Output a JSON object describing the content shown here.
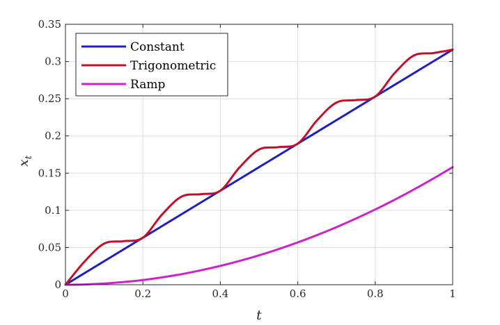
{
  "chart_data": {
    "type": "line",
    "title": "",
    "xlabel": "t",
    "ylabel": "x",
    "ylabel_subscript": "t",
    "xlim": [
      0,
      1
    ],
    "ylim": [
      0,
      0.35
    ],
    "xticks": [
      0,
      0.2,
      0.4,
      0.6,
      0.8,
      1
    ],
    "xtick_labels": [
      "0",
      "0.2",
      "0.4",
      "0.6",
      "0.8",
      "1"
    ],
    "yticks": [
      0,
      0.05,
      0.1,
      0.15,
      0.2,
      0.25,
      0.3,
      0.35
    ],
    "ytick_labels": [
      "0",
      "0.05",
      "0.1",
      "0.15",
      "0.2",
      "0.25",
      "0.3",
      "0.35"
    ],
    "grid": true,
    "legend_position": "top-left",
    "x": [
      0,
      0.05,
      0.1,
      0.15,
      0.2,
      0.25,
      0.3,
      0.35,
      0.4,
      0.45,
      0.5,
      0.55,
      0.6,
      0.65,
      0.7,
      0.75,
      0.8,
      0.85,
      0.9,
      0.95,
      1.0
    ],
    "series": [
      {
        "name": "Constant",
        "color": "#1f1fbf",
        "y": [
          0,
          0.0158,
          0.0316,
          0.0474,
          0.0632,
          0.079,
          0.0948,
          0.1106,
          0.1264,
          0.1422,
          0.158,
          0.1738,
          0.1896,
          0.2054,
          0.2212,
          0.237,
          0.2528,
          0.2686,
          0.2844,
          0.3002,
          0.316
        ]
      },
      {
        "name": "Trigonometric",
        "color": "#c0102a",
        "y": [
          0,
          0.0315,
          0.0553,
          0.0585,
          0.0632,
          0.0947,
          0.1185,
          0.1217,
          0.1264,
          0.1579,
          0.1817,
          0.1849,
          0.1896,
          0.2211,
          0.2449,
          0.2481,
          0.2528,
          0.2843,
          0.3081,
          0.3113,
          0.316
        ]
      },
      {
        "name": "Ramp",
        "color": "#cc22cc",
        "y": [
          0,
          0.0004,
          0.0016,
          0.0036,
          0.0063,
          0.0099,
          0.0142,
          0.0194,
          0.0253,
          0.032,
          0.0395,
          0.0478,
          0.0569,
          0.0668,
          0.0774,
          0.0889,
          0.1011,
          0.1141,
          0.128,
          0.1426,
          0.158
        ]
      }
    ]
  }
}
